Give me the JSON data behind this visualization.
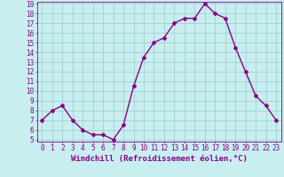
{
  "x": [
    0,
    1,
    2,
    3,
    4,
    5,
    6,
    7,
    8,
    9,
    10,
    11,
    12,
    13,
    14,
    15,
    16,
    17,
    18,
    19,
    20,
    21,
    22,
    23
  ],
  "y": [
    7,
    8,
    8.5,
    7,
    6,
    5.5,
    5.5,
    5,
    6.5,
    10.5,
    13.5,
    15,
    15.5,
    17,
    17.5,
    17.5,
    19,
    18,
    17.5,
    14.5,
    12,
    9.5,
    8.5,
    7
  ],
  "line_color": "#880088",
  "marker": "D",
  "marker_size": 2.0,
  "bg_color": "#c8eef0",
  "grid_color": "#99cccc",
  "xlabel": "Windchill (Refroidissement éolien,°C)",
  "ylim": [
    5,
    19
  ],
  "xlim": [
    -0.5,
    23.5
  ],
  "yticks": [
    5,
    6,
    7,
    8,
    9,
    10,
    11,
    12,
    13,
    14,
    15,
    16,
    17,
    18,
    19
  ],
  "xticks": [
    0,
    1,
    2,
    3,
    4,
    5,
    6,
    7,
    8,
    9,
    10,
    11,
    12,
    13,
    14,
    15,
    16,
    17,
    18,
    19,
    20,
    21,
    22,
    23
  ],
  "tick_color": "#880088",
  "tick_fontsize": 5.5,
  "xlabel_fontsize": 6.5,
  "linewidth": 1.0
}
